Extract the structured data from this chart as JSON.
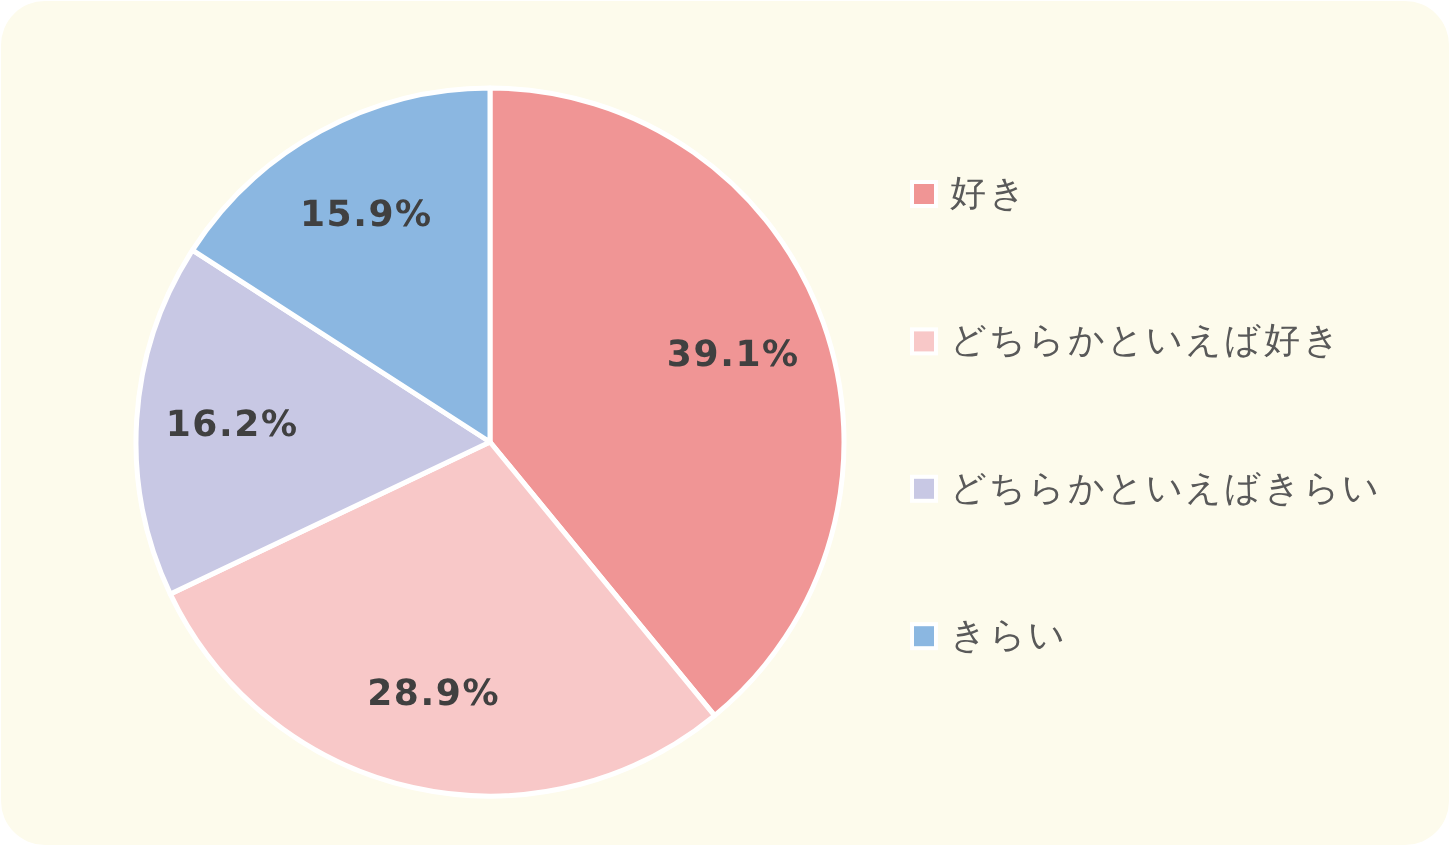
{
  "chart_data": {
    "type": "pie",
    "categories": [
      "好き",
      "どちらかといえば好き",
      "どちらかといえばきらい",
      "きらい"
    ],
    "values": [
      39.1,
      28.9,
      16.2,
      15.9
    ],
    "colors": [
      "#f09595",
      "#f8c8c8",
      "#c8c8e4",
      "#8bb7e1"
    ],
    "value_labels": [
      "39.1%",
      "28.9%",
      "16.2%",
      "15.9%"
    ],
    "legend": "right"
  }
}
